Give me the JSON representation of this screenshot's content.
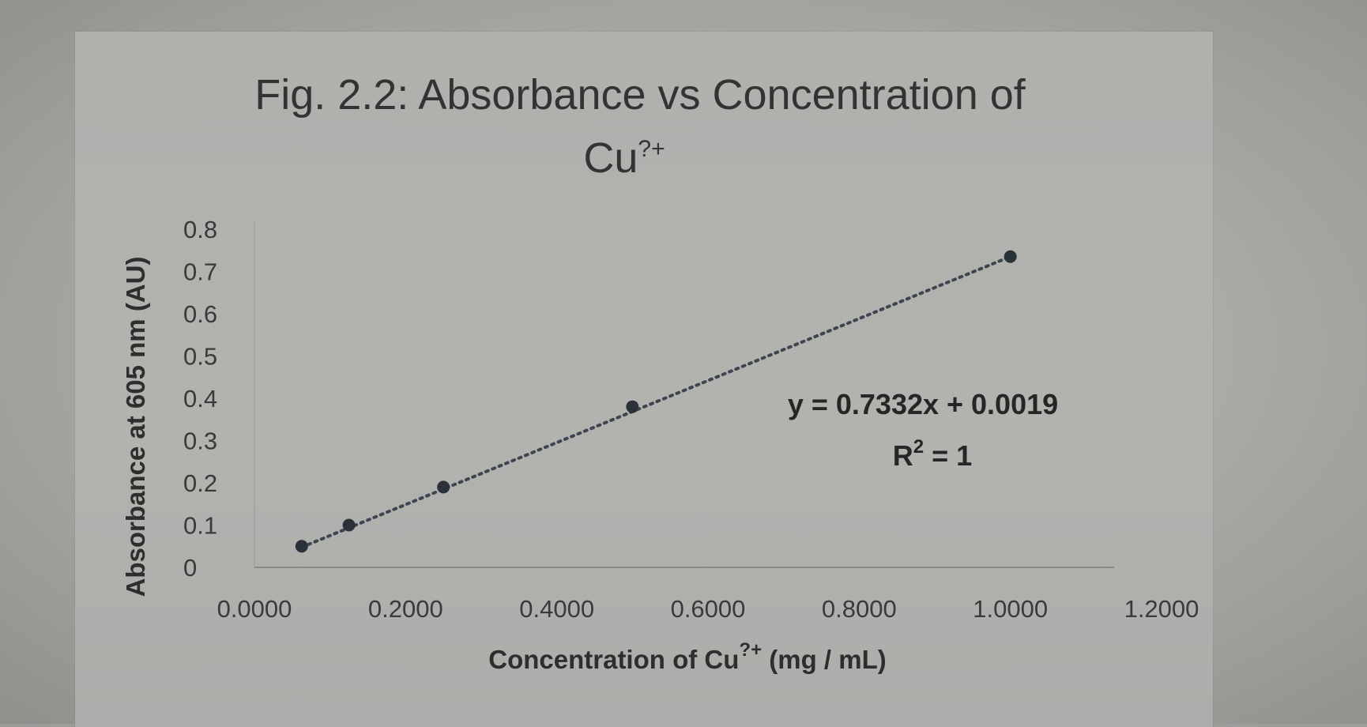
{
  "chart_data": {
    "type": "scatter",
    "title_line1": "Fig. 2.2: Absorbance vs Concentration of",
    "title_line2": "Cu",
    "title_sup": "?+",
    "xlabel": "Concentration of Cu",
    "xlabel_sup": "?+",
    "xlabel_unit": " (mg / mL)",
    "ylabel": "Absorbance at 605 nm (AU)",
    "xlim": [
      0,
      1.2
    ],
    "ylim": [
      0,
      0.8
    ],
    "x_ticks": [
      "0.0000",
      "0.2000",
      "0.4000",
      "0.6000",
      "0.8000",
      "1.0000",
      "1.2000"
    ],
    "x_tick_values": [
      0,
      0.2,
      0.4,
      0.6,
      0.8,
      1.0,
      1.2
    ],
    "y_ticks": [
      "0",
      "0.1",
      "0.2",
      "0.3",
      "0.4",
      "0.5",
      "0.6",
      "0.7",
      "0.8"
    ],
    "y_tick_values": [
      0,
      0.1,
      0.2,
      0.3,
      0.4,
      0.5,
      0.6,
      0.7,
      0.8
    ],
    "series": [
      {
        "x": [
          0.0625,
          0.125,
          0.25,
          0.5,
          1.0
        ],
        "y": [
          0.05,
          0.1,
          0.19,
          0.38,
          0.735
        ]
      }
    ],
    "trendline": {
      "type": "linear",
      "slope": 0.7332,
      "intercept": 0.0019,
      "style": "dotted",
      "equation": "y = 0.7332x + 0.0019",
      "r2_prefix": "R",
      "r2_sup": "2",
      "r2_value": " = 1"
    },
    "grid": false,
    "legend": "none",
    "colors": {
      "marker": "#2b3138",
      "trendline": "#3d4650",
      "axis": "#8a8a8a"
    }
  }
}
